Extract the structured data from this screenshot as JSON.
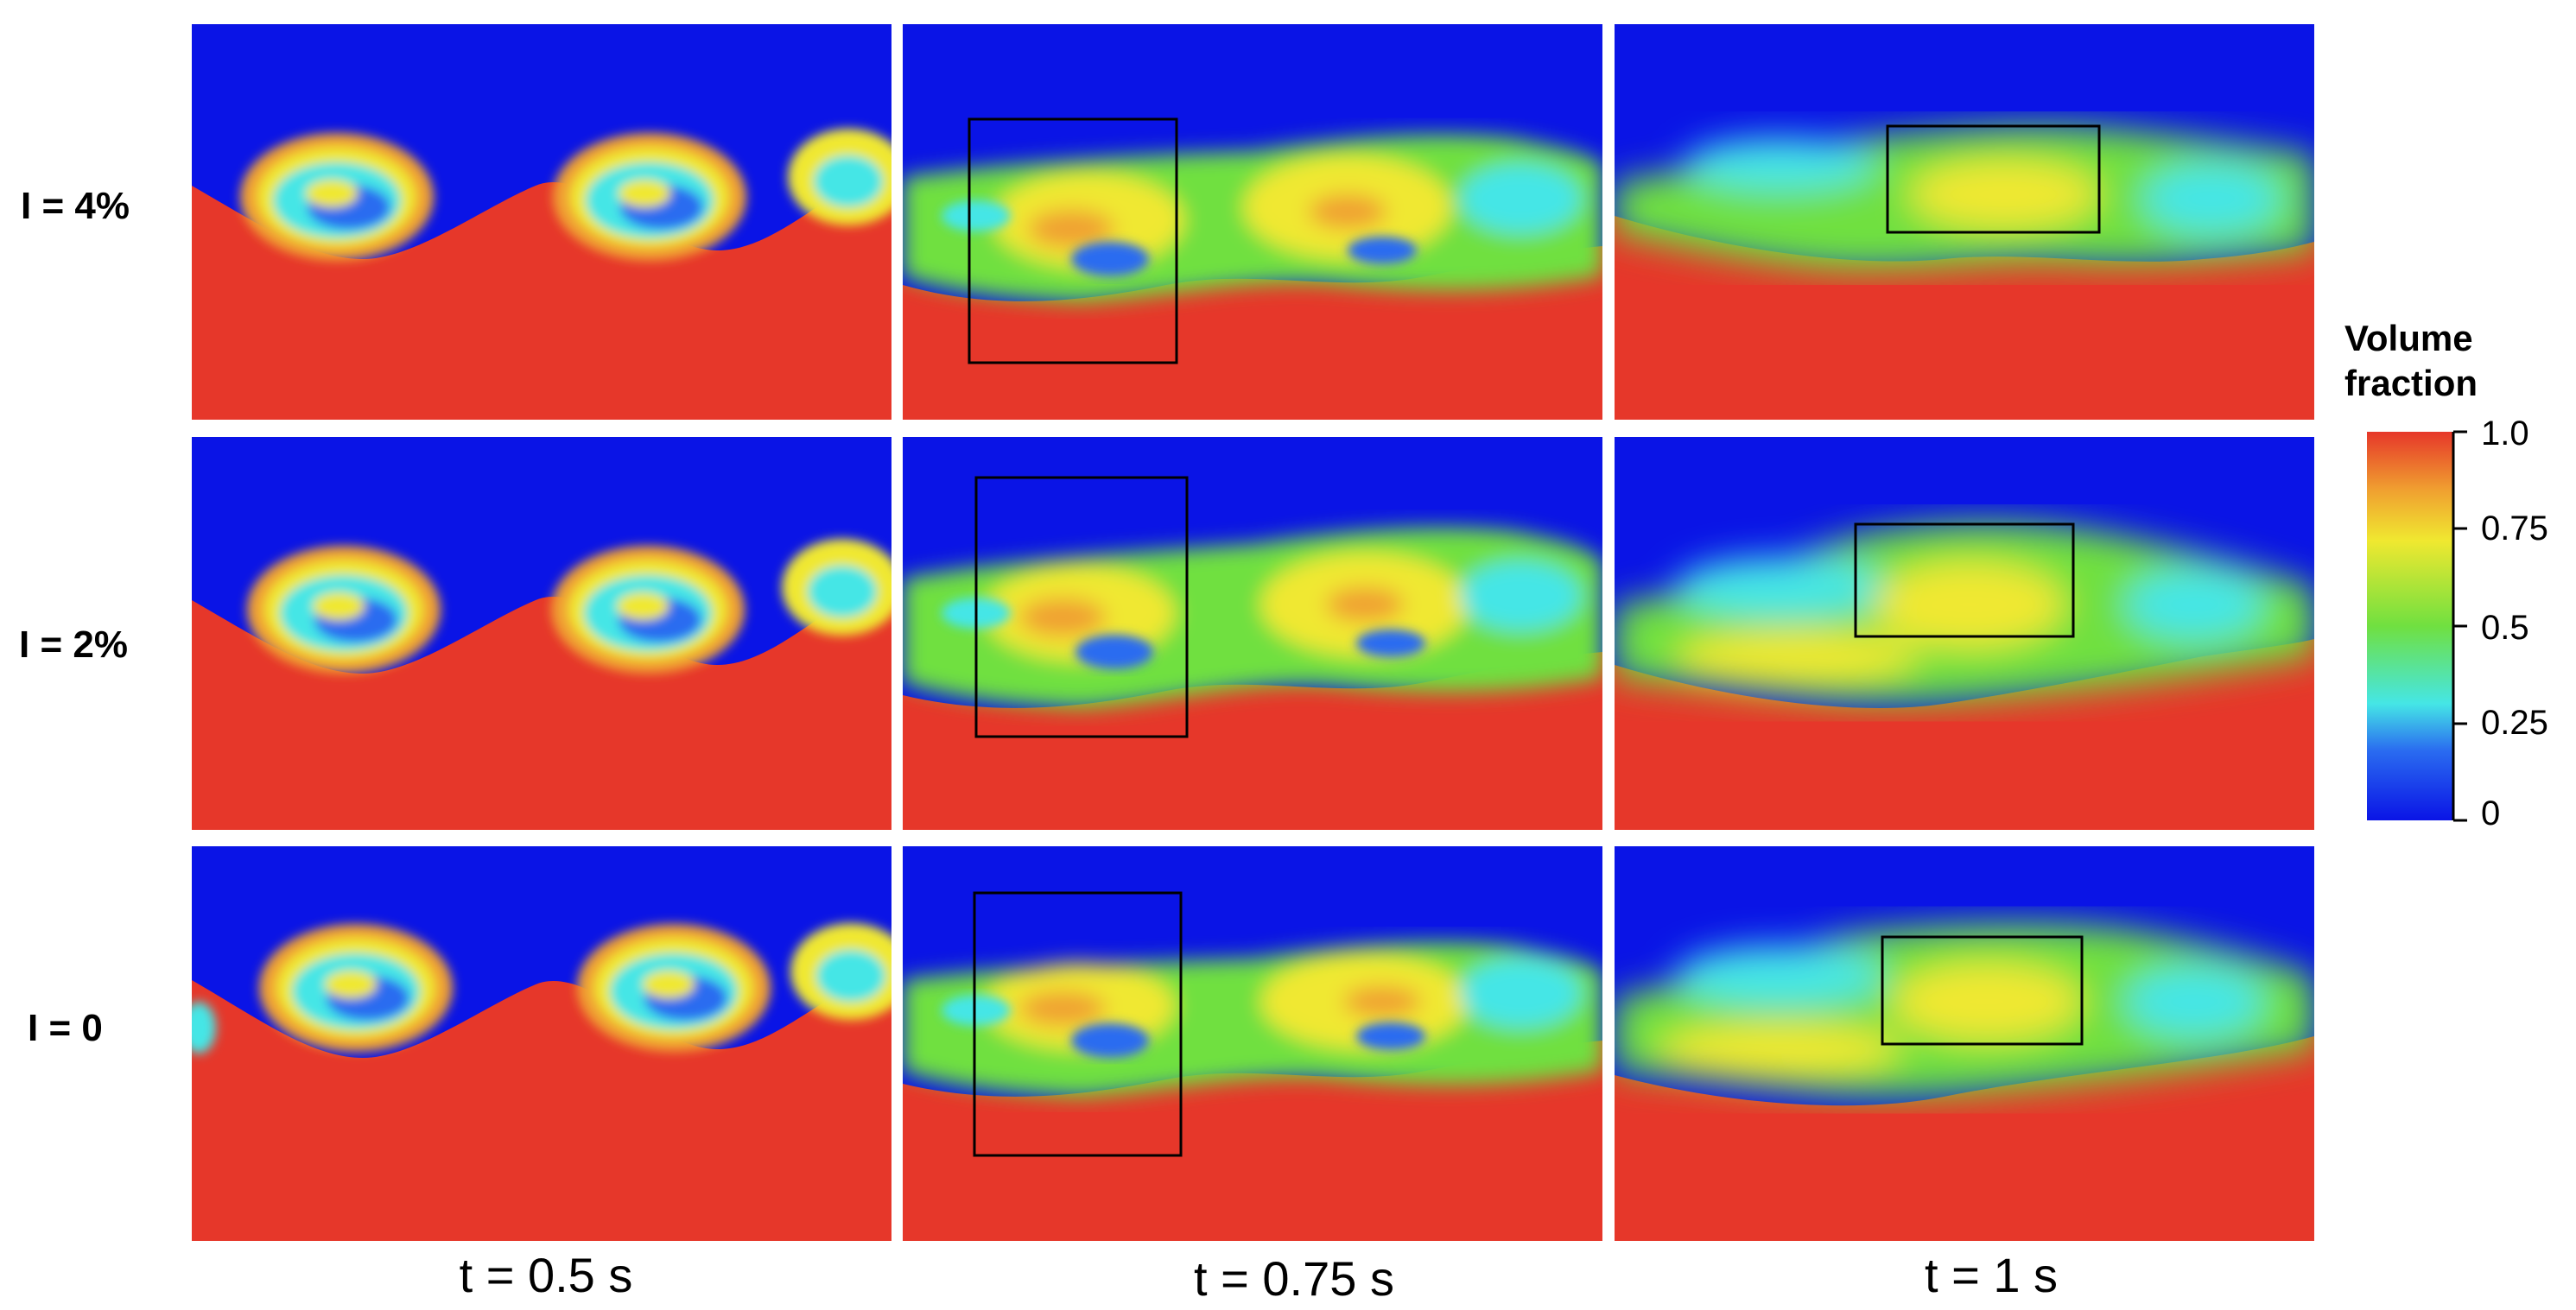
{
  "row_labels": [
    "I = 4%",
    "I = 2%",
    "I = 0"
  ],
  "column_labels": [
    "t = 0.5 s",
    "t = 0.75 s",
    "t = 1 s"
  ],
  "colorbar": {
    "title_line1": "Volume",
    "title_line2": "fraction",
    "ticks": [
      "1.0",
      "0.75",
      "0.5",
      "0.25",
      "0"
    ],
    "colors": [
      "#0a14e6",
      "#2a6cf0",
      "#45e6e6",
      "#70e040",
      "#f0e830",
      "#f0a030",
      "#e6372a"
    ]
  },
  "colors": {
    "heavy_fluid": "#e6372a",
    "light_fluid": "#0a14e6",
    "mixing_green": "#7ee64a",
    "box_outline": "#000000"
  }
}
